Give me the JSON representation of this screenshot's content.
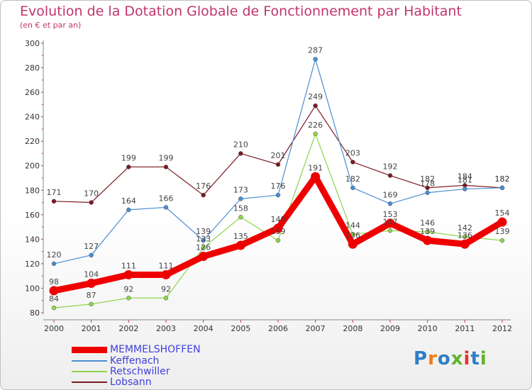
{
  "title": "Evolution de la Dotation Globale de Fonctionnement par Habitant",
  "subtitle": "(en € et par an)",
  "logo": {
    "text": "Proxiti",
    "colors": [
      "#2e7fc6",
      "#ef7d13",
      "#2e7fc6",
      "#62b22f",
      "#e8332f",
      "#2e7fc6",
      "#62b22f"
    ]
  },
  "chart_data": {
    "type": "line",
    "x": [
      "2000",
      "2001",
      "2002",
      "2003",
      "2004",
      "2005",
      "2006",
      "2007",
      "2008",
      "2009",
      "2010",
      "2011",
      "2012"
    ],
    "ylim": [
      80,
      300
    ],
    "yticks": [
      80,
      100,
      120,
      140,
      160,
      180,
      200,
      220,
      240,
      260,
      280,
      300
    ],
    "grid": false,
    "legend": "bottom-left",
    "series": [
      {
        "name": "Lobsann",
        "color": "#7a1a22",
        "values": [
          171,
          170,
          199,
          199,
          176,
          210,
          201,
          249,
          203,
          192,
          182,
          184,
          182
        ]
      },
      {
        "name": "Keffenach",
        "color": "#4a8ed0",
        "values": [
          120,
          127,
          164,
          166,
          139,
          173,
          176,
          287,
          182,
          169,
          178,
          181,
          182
        ]
      },
      {
        "name": "Retschwiller",
        "color": "#8ed44b",
        "values": [
          84,
          87,
          92,
          92,
          133,
          158,
          139,
          226,
          144,
          147,
          146,
          142,
          139
        ]
      },
      {
        "name": "MEMMELSHOFFEN",
        "color": "#ee0000",
        "values": [
          98,
          104,
          111,
          111,
          126,
          135,
          149,
          191,
          136,
          153,
          139,
          136,
          154
        ]
      }
    ],
    "data_labels": {
      "Lobsann": [
        "171",
        "170",
        "199",
        "199",
        "176",
        "210",
        "201",
        "249",
        "203",
        "192",
        "182",
        "184",
        "182"
      ],
      "Keffenach": [
        "120",
        "127",
        "164",
        "166",
        "139",
        "173",
        "176",
        "287",
        "182",
        "169",
        "178",
        "181",
        "182"
      ],
      "Retschwiller": [
        "84",
        "87",
        "92",
        "92",
        "133",
        "158",
        "139",
        "226",
        "144",
        "147",
        "146",
        "142",
        "139"
      ],
      "MEMMELSHOFFEN": [
        "98",
        "104",
        "111",
        "111",
        "126",
        "135",
        "149",
        "191",
        "136",
        "153",
        "139",
        "136",
        "154"
      ]
    }
  },
  "legend": [
    {
      "label": "MEMMELSHOFFEN",
      "color": "#ee0000"
    },
    {
      "label": "Keffenach",
      "color": "#4a8ed0"
    },
    {
      "label": "Retschwiller",
      "color": "#8ed44b"
    },
    {
      "label": "Lobsann",
      "color": "#7a1a22"
    }
  ]
}
